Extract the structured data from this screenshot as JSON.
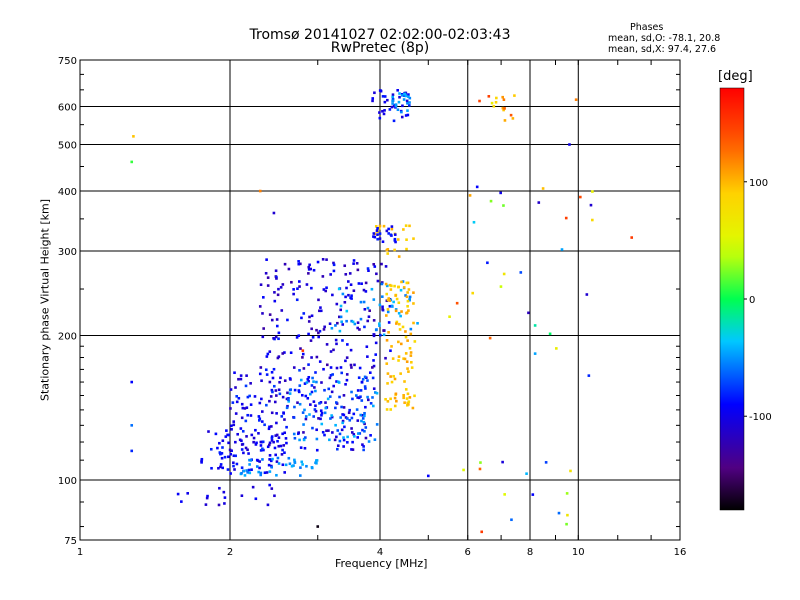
{
  "chart_data": {
    "type": "scatter",
    "title_line1": "Tromsø 20141027 02:02:00-02:03:43",
    "title_line2": "RwPretec (8p)",
    "stats": {
      "heading": "Phases",
      "line_o": "mean, sd,O: -78.1, 20.8",
      "line_x": "mean, sd,X:  97.4, 27.6"
    },
    "xlabel": "Frequency [MHz]",
    "ylabel": "Stationary phase Virtual Height [km]",
    "x_scale": "log",
    "y_scale": "log",
    "xlim": [
      1,
      16
    ],
    "ylim": [
      75,
      750
    ],
    "x_ticks": [
      1,
      2,
      4,
      6,
      8,
      10,
      16
    ],
    "x_tick_labels": [
      "1",
      "2",
      "4",
      "6",
      "8",
      "10",
      "16"
    ],
    "y_ticks": [
      75,
      100,
      200,
      300,
      400,
      500,
      600,
      750
    ],
    "y_tick_labels": [
      "75",
      "100",
      "200",
      "300",
      "400",
      "500",
      "600",
      "750"
    ],
    "grid": true,
    "colorbar": {
      "label": "[deg]",
      "range": [
        -180,
        180
      ],
      "ticks": [
        100,
        0,
        -100
      ],
      "tick_labels": [
        "100",
        "0",
        "-100"
      ],
      "colormap": "rainbow (black-purple-blue-cyan-green-yellow-orange-red)"
    },
    "clusters": [
      {
        "name": "E-region trace blue",
        "f": [
          1.75,
          2.6
        ],
        "h": [
          103,
          128
        ],
        "phase": [
          -110,
          -80
        ],
        "n": 90
      },
      {
        "name": "E-region trace cyan",
        "f": [
          2.1,
          3.0
        ],
        "h": [
          102,
          112
        ],
        "phase": [
          -60,
          -40
        ],
        "n": 40
      },
      {
        "name": "low traces",
        "f": [
          1.55,
          2.5
        ],
        "h": [
          88,
          98
        ],
        "phase": [
          -120,
          -90
        ],
        "n": 18
      },
      {
        "name": "F1 band blue",
        "f": [
          2.0,
          3.9
        ],
        "h": [
          115,
          170
        ],
        "phase": [
          -120,
          -70
        ],
        "n": 220
      },
      {
        "name": "F1 band cyan",
        "f": [
          2.6,
          4.0
        ],
        "h": [
          120,
          165
        ],
        "phase": [
          -70,
          -40
        ],
        "n": 70
      },
      {
        "name": "F2 trace blue",
        "f": [
          2.3,
          4.2
        ],
        "h": [
          170,
          290
        ],
        "phase": [
          -130,
          -80
        ],
        "n": 190
      },
      {
        "name": "F2 trace cyan",
        "f": [
          3.2,
          4.8
        ],
        "h": [
          200,
          260
        ],
        "phase": [
          -60,
          -35
        ],
        "n": 45
      },
      {
        "name": "X-mode trace yellow",
        "f": [
          4.1,
          4.7
        ],
        "h": [
          140,
          260
        ],
        "phase": [
          80,
          110
        ],
        "n": 95
      },
      {
        "name": "X-mode upper yellow",
        "f": [
          3.9,
          4.7
        ],
        "h": [
          290,
          340
        ],
        "phase": [
          85,
          105
        ],
        "n": 20
      },
      {
        "name": "upper blue cluster",
        "f": [
          3.85,
          4.3
        ],
        "h": [
          310,
          340
        ],
        "phase": [
          -110,
          -80
        ],
        "n": 20
      },
      {
        "name": "high echoes blue",
        "f": [
          3.8,
          4.6
        ],
        "h": [
          560,
          650
        ],
        "phase": [
          -110,
          -80
        ],
        "n": 40
      },
      {
        "name": "high echoes cyan",
        "f": [
          4.2,
          4.6
        ],
        "h": [
          580,
          640
        ],
        "phase": [
          -55,
          -40
        ],
        "n": 20
      },
      {
        "name": "scattered high",
        "f": [
          6.3,
          7.5
        ],
        "h": [
          560,
          640
        ],
        "phase": [
          60,
          150
        ],
        "n": 15
      },
      {
        "name": "scatter mid",
        "f": [
          5.5,
          11.0
        ],
        "h": [
          180,
          420
        ],
        "phase": [
          -120,
          150
        ],
        "n": 28
      },
      {
        "name": "scatter low",
        "f": [
          5.5,
          9.7
        ],
        "h": [
          78,
          110
        ],
        "phase": [
          -110,
          130
        ],
        "n": 14
      }
    ],
    "isolated_points": [
      {
        "f": 1.28,
        "h": 520,
        "phase": 95
      },
      {
        "f": 1.27,
        "h": 460,
        "phase": 10
      },
      {
        "f": 1.27,
        "h": 160,
        "phase": -90
      },
      {
        "f": 1.27,
        "h": 130,
        "phase": -60
      },
      {
        "f": 1.27,
        "h": 115,
        "phase": -80
      },
      {
        "f": 2.3,
        "h": 400,
        "phase": 120
      },
      {
        "f": 2.45,
        "h": 360,
        "phase": -110
      },
      {
        "f": 2.3,
        "h": 230,
        "phase": -120
      },
      {
        "f": 2.8,
        "h": 186,
        "phase": 150
      },
      {
        "f": 3.0,
        "h": 80,
        "phase": -175
      },
      {
        "f": 10.5,
        "h": 165,
        "phase": -80
      },
      {
        "f": 12.8,
        "h": 320,
        "phase": 150
      },
      {
        "f": 9.9,
        "h": 620,
        "phase": 120
      },
      {
        "f": 9.6,
        "h": 500,
        "phase": -100
      },
      {
        "f": 5.0,
        "h": 102,
        "phase": -90
      },
      {
        "f": 6.4,
        "h": 78,
        "phase": 150
      }
    ]
  }
}
